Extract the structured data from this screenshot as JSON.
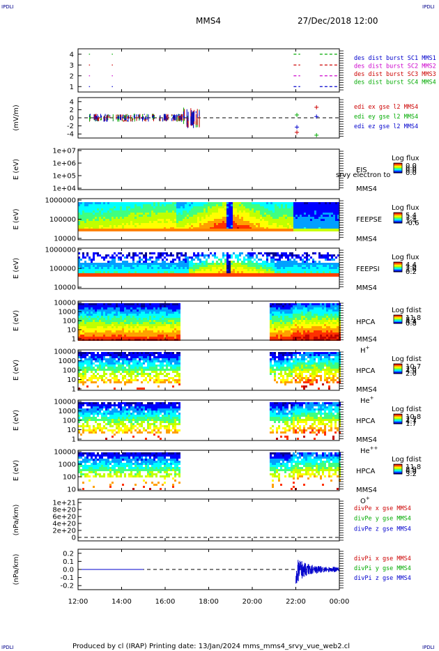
{
  "header": {
    "spacecraft": "MMS4",
    "datetime": "27/Dec/2018 12:00",
    "corner_tl": "IPDLI",
    "corner_tr": "IPDLI",
    "corner_bl": "IPDLI",
    "corner_br": "IPDLI"
  },
  "footer": {
    "text": "Produced by cl (IRAP)   Printing date: 13/Jan/2024   mms_mms4_srvy_vue_web2.cl"
  },
  "colors": {
    "blue": "#0000cc",
    "magenta": "#cc00cc",
    "red": "#cc0000",
    "green": "#00aa00",
    "spectral": [
      "#00008f",
      "#0000ff",
      "#00a0ff",
      "#00ffff",
      "#40ff80",
      "#c0ff00",
      "#ffff00",
      "#ffa000",
      "#ff3000",
      "#c00000"
    ]
  },
  "chart_data": {
    "type": "multi-panel",
    "time_axis": {
      "ticks": [
        "12:00",
        "14:00",
        "16:00",
        "18:00",
        "20:00",
        "22:00",
        "00:00"
      ],
      "start_hour": 12,
      "end_hour": 24
    },
    "panels": [
      {
        "id": "burst",
        "type": "scatter",
        "yticks": [
          "1",
          "2",
          "3",
          "4"
        ],
        "ylim": [
          0.5,
          4.5
        ],
        "ylabel": "",
        "legend": [
          {
            "label": "des dist burst SC1 MMS1",
            "color": "#0000cc"
          },
          {
            "label": "des dist burst SC2 MMS2",
            "color": "#cc00cc"
          },
          {
            "label": "des dist burst SC3 MMS3",
            "color": "#cc0000"
          },
          {
            "label": "des dist burst SC4 MMS4",
            "color": "#00aa00"
          }
        ],
        "series": [
          {
            "level": 4,
            "color": "#00aa00",
            "intervals": [
              [
                12.5,
                12.52
              ],
              [
                13.55,
                13.57
              ],
              [
                21.9,
                22.2
              ],
              [
                23.1,
                24.0
              ]
            ]
          },
          {
            "level": 3,
            "color": "#cc0000",
            "intervals": [
              [
                12.5,
                12.52
              ],
              [
                13.55,
                13.57
              ],
              [
                21.9,
                22.2
              ],
              [
                23.1,
                24.0
              ]
            ]
          },
          {
            "level": 2,
            "color": "#cc00cc",
            "intervals": [
              [
                12.5,
                12.52
              ],
              [
                13.55,
                13.57
              ],
              [
                21.9,
                22.2
              ],
              [
                23.1,
                24.0
              ]
            ]
          },
          {
            "level": 1,
            "color": "#0000cc",
            "intervals": [
              [
                12.5,
                12.52
              ],
              [
                13.55,
                13.57
              ],
              [
                21.9,
                22.2
              ],
              [
                23.1,
                24.0
              ]
            ]
          }
        ]
      },
      {
        "id": "edi",
        "type": "line",
        "yticks": [
          "-4",
          "-2",
          "0",
          "2",
          "4"
        ],
        "ylim": [
          -5,
          5
        ],
        "ylabel": "(mV/m)",
        "zero_line": true,
        "legend": [
          {
            "label": "edi ex gse l2 MMS4",
            "color": "#cc0000"
          },
          {
            "label": "edi ey gse l2 MMS4",
            "color": "#00aa00"
          },
          {
            "label": "edi ez gse l2 MMS4",
            "color": "#0000cc"
          }
        ],
        "active_range": [
          12.5,
          17.6
        ],
        "points": [
          {
            "t": 22.05,
            "v": 0.7,
            "color": "#00aa00"
          },
          {
            "t": 22.05,
            "v": -2.3,
            "color": "#0000cc"
          },
          {
            "t": 22.05,
            "v": -3.6,
            "color": "#cc0000"
          },
          {
            "t": 22.95,
            "v": 2.6,
            "color": "#cc0000"
          },
          {
            "t": 22.95,
            "v": 0.3,
            "color": "#0000cc"
          },
          {
            "t": 22.95,
            "v": -4.3,
            "color": "#00aa00"
          }
        ]
      },
      {
        "id": "eis",
        "type": "heatmap",
        "yticks": [
          "1e+04",
          "1e+05",
          "1e+06",
          "1e+07"
        ],
        "ylabel": "E (eV)",
        "instrument": "EIS",
        "sc": "MMS4",
        "extra": "srvy electron to",
        "cbar_title": "Log flux",
        "cbar_values": [
          "0.0",
          "0.0",
          "0.0",
          "0.0"
        ],
        "empty": true
      },
      {
        "id": "feepse",
        "type": "heatmap",
        "yticks": [
          "10000",
          "100000",
          "1000000"
        ],
        "ylabel": "E (eV)",
        "instrument": "FEEPSE",
        "sc": "MMS4",
        "cbar_title": "Log flux",
        "cbar_values": [
          "5.4",
          "3.4",
          "1.4",
          "-0.6"
        ],
        "coverage": [
          [
            12.0,
            24.0
          ]
        ]
      },
      {
        "id": "feepsi",
        "type": "heatmap",
        "yticks": [
          "10000",
          "100000",
          "1000000"
        ],
        "ylabel": "E (eV)",
        "instrument": "FEEPSI",
        "sc": "MMS4",
        "cbar_title": "Log flux",
        "cbar_values": [
          "4.4",
          "3.0",
          "1.6",
          "0.2"
        ],
        "coverage": [
          [
            12.0,
            24.0
          ]
        ]
      },
      {
        "id": "hpca_h",
        "type": "heatmap",
        "yticks": [
          "1",
          "10",
          "100",
          "1000",
          "10000"
        ],
        "ylabel": "E (eV)",
        "instrument": "HPCA",
        "sc": "MMS4",
        "species": "H",
        "charge": "+",
        "cbar_title": "Log fdist",
        "cbar_values": [
          "11.8",
          "8.1",
          "4.4",
          "0.8"
        ],
        "coverage": [
          [
            12.0,
            16.7
          ],
          [
            20.8,
            24.0
          ]
        ]
      },
      {
        "id": "hpca_he",
        "type": "heatmap",
        "yticks": [
          "1",
          "10",
          "100",
          "1000",
          "10000"
        ],
        "ylabel": "E (eV)",
        "instrument": "HPCA",
        "sc": "MMS4",
        "species": "He",
        "charge": "+",
        "cbar_title": "Log fdist",
        "cbar_values": [
          "10.7",
          "7.8",
          "4.9",
          "2.0"
        ],
        "coverage": [
          [
            12.0,
            16.7
          ],
          [
            20.8,
            24.0
          ]
        ]
      },
      {
        "id": "hpca_hepp",
        "type": "heatmap",
        "yticks": [
          "1",
          "10",
          "100",
          "1000",
          "10000"
        ],
        "ylabel": "E (eV)",
        "instrument": "HPCA",
        "sc": "MMS4",
        "species": "He",
        "charge": "++",
        "cbar_title": "Log fdist",
        "cbar_values": [
          "10.8",
          "7.7",
          "4.7",
          "1.7"
        ],
        "coverage": [
          [
            12.0,
            16.7
          ],
          [
            20.8,
            24.0
          ]
        ]
      },
      {
        "id": "hpca_o",
        "type": "heatmap",
        "yticks": [
          "10",
          "100",
          "1000",
          "10000"
        ],
        "ylabel": "E (eV)",
        "instrument": "HPCA",
        "sc": "MMS4",
        "species": "O",
        "charge": "+",
        "cbar_title": "Log fdist",
        "cbar_values": [
          "11.8",
          "8.9",
          "6.0",
          "3.2"
        ],
        "coverage": [
          [
            12.0,
            16.7
          ],
          [
            20.8,
            24.0
          ]
        ]
      },
      {
        "id": "divpe",
        "type": "line",
        "yticks": [
          "0",
          "2e+20",
          "4e+20",
          "6e+20",
          "8e+20",
          "1e+21"
        ],
        "ylabel": "(nPa/km)",
        "legend": [
          {
            "label": "divPe x gse MMS4",
            "color": "#cc0000"
          },
          {
            "label": "divPe y gse MMS4",
            "color": "#00aa00"
          },
          {
            "label": "divPe z gse MMS4",
            "color": "#0000cc"
          }
        ],
        "zero_line": true
      },
      {
        "id": "divpi",
        "type": "line",
        "yticks": [
          "-0.2",
          "-0.1",
          "0.0",
          "0.1",
          "0.2"
        ],
        "ylim": [
          -0.25,
          0.25
        ],
        "ylabel": "(nPa/km)",
        "zero_line": true,
        "legend": [
          {
            "label": "divPi x gse MMS4",
            "color": "#cc0000"
          },
          {
            "label": "divPi y gse MMS4",
            "color": "#00aa00"
          },
          {
            "label": "divPi z gse MMS4",
            "color": "#0000cc"
          }
        ],
        "active_range": [
          22.0,
          24.0
        ]
      }
    ]
  }
}
